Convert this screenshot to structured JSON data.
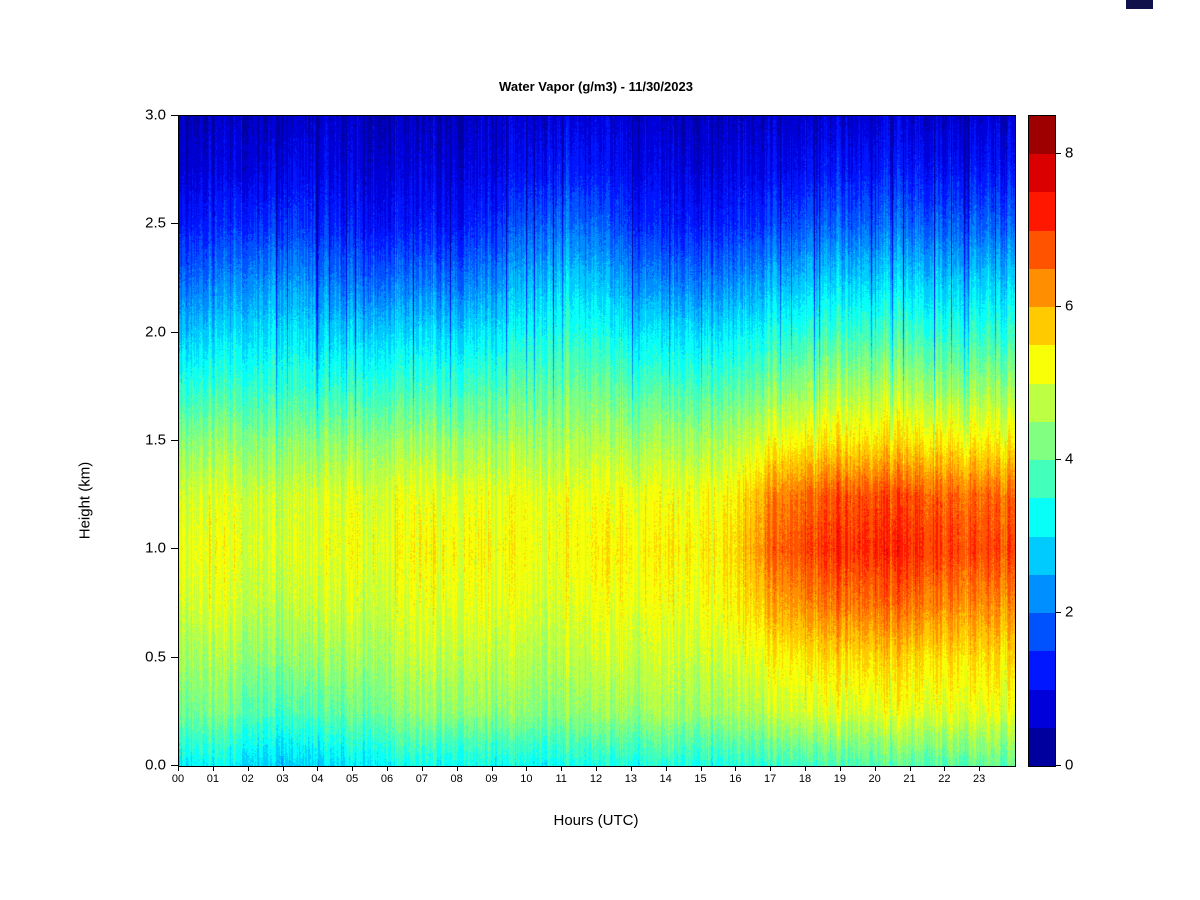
{
  "title": "Water Vapor (g/m3) - 11/30/2023",
  "xlabel": "Hours (UTC)",
  "ylabel": "Height (km)",
  "colorbar": {
    "min": 0,
    "max": 8.5,
    "level_step": 0.5,
    "tick_values": [
      0,
      2,
      4,
      6,
      8
    ],
    "tick_labels": [
      "0",
      "2",
      "4",
      "6",
      "8"
    ],
    "colormap": "jet",
    "low_color": "#00008f",
    "high_color": "#7f0000"
  },
  "chart_data": {
    "type": "heatmap",
    "title": "Water Vapor (g/m3) - 11/30/2023",
    "xlabel": "Hours (UTC)",
    "ylabel": "Height (km)",
    "units": "g/m3",
    "date": "11/30/2023",
    "x_hours": [
      0,
      1,
      2,
      3,
      4,
      5,
      6,
      7,
      8,
      9,
      10,
      11,
      12,
      13,
      14,
      15,
      16,
      17,
      18,
      19,
      20,
      21,
      22,
      23
    ],
    "x_ticklabels": [
      "00",
      "01",
      "02",
      "03",
      "04",
      "05",
      "06",
      "07",
      "08",
      "09",
      "10",
      "11",
      "12",
      "13",
      "14",
      "15",
      "16",
      "17",
      "18",
      "19",
      "20",
      "21",
      "22",
      "23"
    ],
    "xlim": [
      0,
      24
    ],
    "y_tick_values": [
      0,
      0.5,
      1,
      1.5,
      2,
      2.5,
      3
    ],
    "y_ticklabels": [
      "0.0",
      "0.5",
      "1.0",
      "1.5",
      "2.0",
      "2.5",
      "3.0"
    ],
    "ylim": [
      0,
      3
    ],
    "zlim": [
      0,
      8.5
    ],
    "heights_km": [
      0,
      0.25,
      0.5,
      0.75,
      1.0,
      1.25,
      1.5,
      1.75,
      2.0,
      2.25,
      2.5,
      2.75,
      3.0
    ],
    "values": [
      [
        3.2,
        3.2,
        3.0,
        2.8,
        2.8,
        3.0,
        3.3,
        3.3,
        3.3,
        3.3,
        3.2,
        3.3,
        3.3,
        3.3,
        3.4,
        3.4,
        3.5,
        3.6,
        3.7,
        3.8,
        3.8,
        3.9,
        3.9,
        4.0
      ],
      [
        4.2,
        4.2,
        4.0,
        3.8,
        3.8,
        4.0,
        4.3,
        4.4,
        4.4,
        4.4,
        4.3,
        4.3,
        4.4,
        4.4,
        4.5,
        4.5,
        4.6,
        4.8,
        5.0,
        5.0,
        5.0,
        5.1,
        5.1,
        5.1
      ],
      [
        4.6,
        4.6,
        4.5,
        4.4,
        4.4,
        4.5,
        4.7,
        4.8,
        4.8,
        4.8,
        4.7,
        4.7,
        4.8,
        4.8,
        4.8,
        4.9,
        5.0,
        5.3,
        5.5,
        5.6,
        5.6,
        5.6,
        5.6,
        5.6
      ],
      [
        5.0,
        5.0,
        4.9,
        4.8,
        4.8,
        4.9,
        5.0,
        5.1,
        5.1,
        5.1,
        5.0,
        5.0,
        5.1,
        5.1,
        5.1,
        5.2,
        5.4,
        6.0,
        6.3,
        6.5,
        6.5,
        6.5,
        6.4,
        6.3
      ],
      [
        5.2,
        5.2,
        5.1,
        5.0,
        5.0,
        5.1,
        5.2,
        5.3,
        5.3,
        5.3,
        5.2,
        5.2,
        5.3,
        5.3,
        5.3,
        5.4,
        5.6,
        6.6,
        6.9,
        7.1,
        7.1,
        7.1,
        7.0,
        6.9
      ],
      [
        5.0,
        5.0,
        5.0,
        4.9,
        4.9,
        5.0,
        5.1,
        5.1,
        5.1,
        5.1,
        5.1,
        5.1,
        5.1,
        5.1,
        5.1,
        5.2,
        5.4,
        6.3,
        6.6,
        6.8,
        6.8,
        6.8,
        6.7,
        6.6
      ],
      [
        4.4,
        4.4,
        4.4,
        4.4,
        4.3,
        4.4,
        4.5,
        4.5,
        4.5,
        4.5,
        4.6,
        4.6,
        4.6,
        4.5,
        4.5,
        4.6,
        4.7,
        5.2,
        5.4,
        5.5,
        5.5,
        5.5,
        5.5,
        5.4
      ],
      [
        3.6,
        3.6,
        3.7,
        3.7,
        3.5,
        3.6,
        3.7,
        3.7,
        3.7,
        3.8,
        4.0,
        4.1,
        4.0,
        3.8,
        3.7,
        3.8,
        3.9,
        4.3,
        4.5,
        4.6,
        4.6,
        4.6,
        4.5,
        4.5
      ],
      [
        2.8,
        2.8,
        3.0,
        3.1,
        2.8,
        2.8,
        2.9,
        2.9,
        2.9,
        3.0,
        3.3,
        3.5,
        3.3,
        3.0,
        2.9,
        3.0,
        3.1,
        3.4,
        3.6,
        3.7,
        3.7,
        3.7,
        3.6,
        3.6
      ],
      [
        2.0,
        2.0,
        2.3,
        2.4,
        2.1,
        1.9,
        2.0,
        2.0,
        2.0,
        2.2,
        2.6,
        2.8,
        2.6,
        2.2,
        2.0,
        2.1,
        2.2,
        2.5,
        2.7,
        2.8,
        2.8,
        2.8,
        2.8,
        2.8
      ],
      [
        1.3,
        1.3,
        1.5,
        1.6,
        1.4,
        1.2,
        1.2,
        1.2,
        1.2,
        1.4,
        1.8,
        2.0,
        1.8,
        1.4,
        1.2,
        1.3,
        1.4,
        1.6,
        1.8,
        1.9,
        1.9,
        1.9,
        1.9,
        1.9
      ],
      [
        0.8,
        0.8,
        0.9,
        1.0,
        0.9,
        0.8,
        0.8,
        0.8,
        0.8,
        0.9,
        1.1,
        1.3,
        1.1,
        0.9,
        0.8,
        0.8,
        0.9,
        1.0,
        1.1,
        1.2,
        1.2,
        1.2,
        1.2,
        1.2
      ],
      [
        0.5,
        0.5,
        0.6,
        0.6,
        0.6,
        0.5,
        0.5,
        0.5,
        0.5,
        0.6,
        0.7,
        0.8,
        0.7,
        0.6,
        0.5,
        0.5,
        0.6,
        0.6,
        0.7,
        0.7,
        0.7,
        0.7,
        0.7,
        0.7
      ]
    ]
  }
}
